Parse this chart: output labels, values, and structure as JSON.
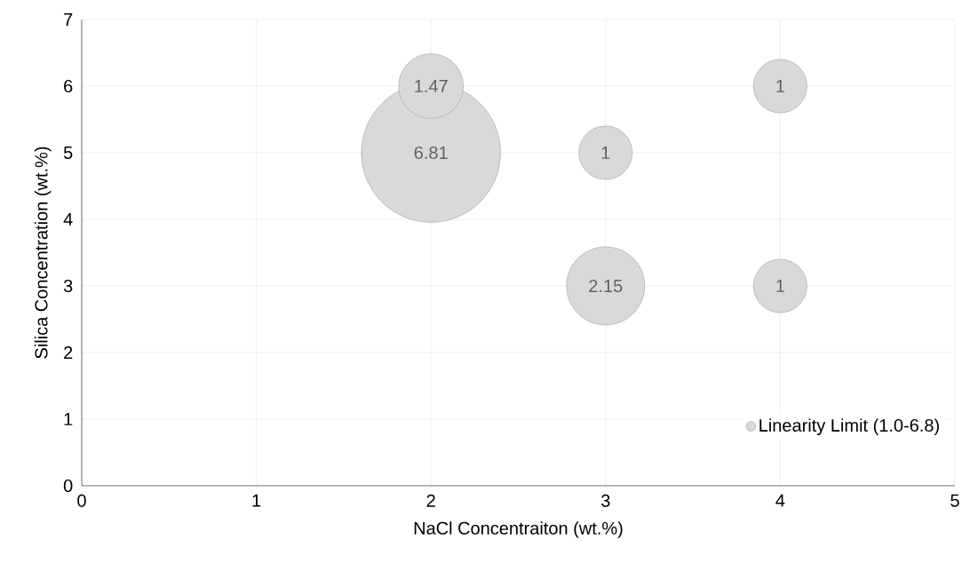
{
  "chart_data": {
    "type": "bubble",
    "xlabel": "NaCl Concentraiton (wt.%)",
    "ylabel": "Silica Concentration (wt.%)",
    "series": [
      {
        "name": "Linearity Limit (1.0-6.8)",
        "color": "#d9d9d9",
        "x": [
          2,
          2,
          3,
          3,
          4,
          4
        ],
        "values": [
          5,
          6,
          5,
          3,
          6,
          3
        ],
        "sizes": [
          6.81,
          1.47,
          1,
          2.15,
          1,
          1
        ],
        "value_labels": [
          "6.81",
          "1.47",
          "1",
          "2.15",
          "1",
          "1"
        ]
      }
    ],
    "xlim": [
      0,
      5
    ],
    "xticks": [
      0,
      1,
      2,
      3,
      4,
      5
    ],
    "ylim": [
      0,
      7
    ],
    "yticks": [
      0,
      1,
      2,
      3,
      4,
      5,
      6,
      7
    ],
    "grid": true,
    "legend": "bottom right"
  }
}
